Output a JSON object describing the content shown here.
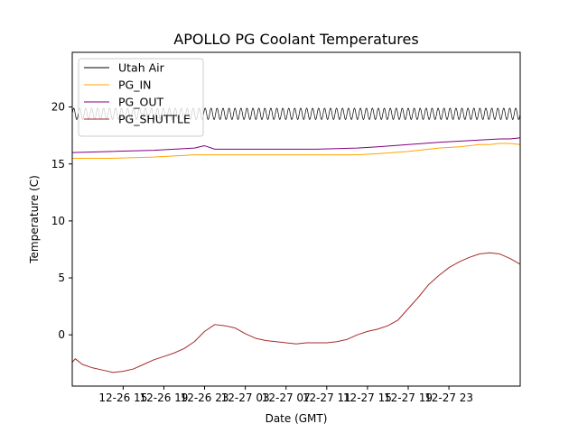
{
  "chart_data": {
    "type": "line",
    "title": "APOLLO PG Coolant Temperatures",
    "xlabel": "Date (GMT)",
    "ylabel": "Temperature (C)",
    "x_range_hours": [
      0,
      44
    ],
    "ylim": [
      -4.5,
      24.8
    ],
    "grid": false,
    "legend_position": "top-left",
    "x_ticks": [
      {
        "hour": 5,
        "label": "12-26 15"
      },
      {
        "hour": 9,
        "label": "12-26 19"
      },
      {
        "hour": 13,
        "label": "12-26 23"
      },
      {
        "hour": 17,
        "label": "12-27 03"
      },
      {
        "hour": 21,
        "label": "12-27 07"
      },
      {
        "hour": 25,
        "label": "12-27 11"
      },
      {
        "hour": 29,
        "label": "12-27 15"
      },
      {
        "hour": 33,
        "label": "12-27 19"
      },
      {
        "hour": 37,
        "label": "12-27 23"
      }
    ],
    "y_ticks": [
      {
        "value": 0,
        "label": "0"
      },
      {
        "value": 5,
        "label": "5"
      },
      {
        "value": 10,
        "label": "10"
      },
      {
        "value": 15,
        "label": "15"
      },
      {
        "value": 20,
        "label": "20"
      }
    ],
    "series": [
      {
        "name": "Utah Air",
        "color": "#000000",
        "oscillation": {
          "mean": 19.4,
          "amplitude": 0.5,
          "cycles": 75
        },
        "x_hours": [
          0,
          44
        ],
        "values": [
          19.4,
          19.4
        ]
      },
      {
        "name": "PG_IN",
        "color": "#FFA500",
        "x_hours": [
          0,
          4,
          8,
          12,
          13,
          16,
          20,
          24,
          28,
          30,
          33,
          36,
          38,
          39,
          40,
          41,
          42,
          43,
          44
        ],
        "values": [
          15.5,
          15.5,
          15.6,
          15.8,
          15.8,
          15.8,
          15.8,
          15.8,
          15.8,
          15.9,
          16.1,
          16.4,
          16.5,
          16.6,
          16.7,
          16.7,
          16.8,
          16.8,
          16.7
        ]
      },
      {
        "name": "PG_OUT",
        "color": "#800080",
        "x_hours": [
          0,
          4,
          8,
          12,
          13,
          14,
          16,
          20,
          24,
          28,
          30,
          33,
          36,
          38,
          40,
          42,
          43,
          44
        ],
        "values": [
          16.0,
          16.1,
          16.2,
          16.4,
          16.6,
          16.3,
          16.3,
          16.3,
          16.3,
          16.4,
          16.5,
          16.7,
          16.9,
          17.0,
          17.1,
          17.2,
          17.2,
          17.3
        ]
      },
      {
        "name": "PG_SHUTTLE",
        "color": "#A52A2A",
        "x_hours": [
          0,
          0.3,
          1,
          2,
          3,
          4,
          5,
          6,
          7,
          8,
          9,
          10,
          11,
          12,
          13,
          14,
          15,
          16,
          17,
          18,
          19,
          20,
          21,
          22,
          23,
          24,
          25,
          26,
          27,
          28,
          29,
          30,
          31,
          32,
          33,
          34,
          35,
          36,
          37,
          38,
          39,
          40,
          41,
          42,
          43,
          44
        ],
        "values": [
          -2.4,
          -2.1,
          -2.6,
          -2.9,
          -3.1,
          -3.3,
          -3.2,
          -3.0,
          -2.6,
          -2.2,
          -1.9,
          -1.6,
          -1.2,
          -0.6,
          0.3,
          0.9,
          0.8,
          0.6,
          0.1,
          -0.3,
          -0.5,
          -0.6,
          -0.7,
          -0.8,
          -0.7,
          -0.7,
          -0.7,
          -0.6,
          -0.4,
          0.0,
          0.3,
          0.5,
          0.8,
          1.3,
          2.3,
          3.3,
          4.4,
          5.2,
          5.9,
          6.4,
          6.8,
          7.1,
          7.2,
          7.1,
          6.7,
          6.2
        ]
      }
    ]
  }
}
